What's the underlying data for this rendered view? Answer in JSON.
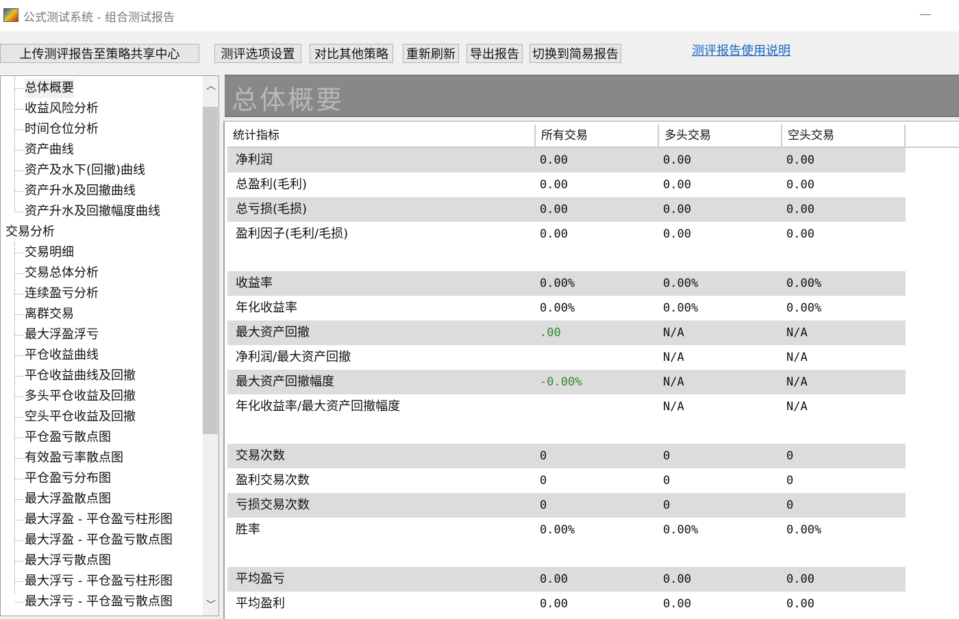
{
  "window": {
    "title": "公式测试系统 - 组合测试报告"
  },
  "toolbar": {
    "upload": "上传测评报告至策略共享中心",
    "options": "测评选项设置",
    "compare": "对比其他策略",
    "refresh": "重新刷新",
    "export": "导出报告",
    "switch": "切换到简易报告",
    "help": "测评报告使用说明"
  },
  "tree": {
    "items": [
      {
        "label": "总体概要",
        "level": 1,
        "selected": true
      },
      {
        "label": "收益风险分析",
        "level": 1
      },
      {
        "label": "时间仓位分析",
        "level": 1
      },
      {
        "label": "资产曲线",
        "level": 1
      },
      {
        "label": "资产及水下(回撤)曲线",
        "level": 1
      },
      {
        "label": "资产升水及回撤曲线",
        "level": 1
      },
      {
        "label": "资产升水及回撤幅度曲线",
        "level": 1
      },
      {
        "label": "交易分析",
        "level": 0
      },
      {
        "label": "交易明细",
        "level": 1
      },
      {
        "label": "交易总体分析",
        "level": 1
      },
      {
        "label": "连续盈亏分析",
        "level": 1
      },
      {
        "label": "离群交易",
        "level": 1
      },
      {
        "label": "最大浮盈浮亏",
        "level": 1
      },
      {
        "label": "平仓收益曲线",
        "level": 1
      },
      {
        "label": "平仓收益曲线及回撤",
        "level": 1
      },
      {
        "label": "多头平仓收益及回撤",
        "level": 1
      },
      {
        "label": "空头平仓收益及回撤",
        "level": 1
      },
      {
        "label": "平仓盈亏散点图",
        "level": 1
      },
      {
        "label": "有效盈亏率散点图",
        "level": 1
      },
      {
        "label": "平仓盈亏分布图",
        "level": 1
      },
      {
        "label": "最大浮盈散点图",
        "level": 1
      },
      {
        "label": "最大浮盈 - 平仓盈亏柱形图",
        "level": 1
      },
      {
        "label": "最大浮盈 - 平仓盈亏散点图",
        "level": 1
      },
      {
        "label": "最大浮亏散点图",
        "level": 1
      },
      {
        "label": "最大浮亏 - 平仓盈亏柱形图",
        "level": 1
      },
      {
        "label": "最大浮亏 - 平仓盈亏散点图",
        "level": 1
      }
    ]
  },
  "section": {
    "title": "总体概要"
  },
  "table": {
    "headers": [
      "统计指标",
      "所有交易",
      "多头交易",
      "空头交易"
    ],
    "groups": [
      [
        {
          "label": "净利润",
          "all": "0.00",
          "long": "0.00",
          "short": "0.00"
        },
        {
          "label": "总盈利(毛利)",
          "all": "0.00",
          "long": "0.00",
          "short": "0.00"
        },
        {
          "label": "总亏损(毛损)",
          "all": "0.00",
          "long": "0.00",
          "short": "0.00"
        },
        {
          "label": "盈利因子(毛利/毛损)",
          "all": "0.00",
          "long": "0.00",
          "short": "0.00"
        }
      ],
      [
        {
          "label": "收益率",
          "all": "0.00%",
          "long": "0.00%",
          "short": "0.00%"
        },
        {
          "label": "年化收益率",
          "all": "0.00%",
          "long": "0.00%",
          "short": "0.00%"
        },
        {
          "label": "最大资产回撤",
          "all": ".00",
          "all_color": "#2e8b2e",
          "long": "N/A",
          "short": "N/A"
        },
        {
          "label": "净利润/最大资产回撤",
          "all": "",
          "long": "N/A",
          "short": "N/A"
        },
        {
          "label": "最大资产回撤幅度",
          "all": "-0.00%",
          "all_color": "#2e8b2e",
          "long": "N/A",
          "short": "N/A"
        },
        {
          "label": "年化收益率/最大资产回撤幅度",
          "all": "",
          "long": "N/A",
          "short": "N/A"
        }
      ],
      [
        {
          "label": "交易次数",
          "all": "0",
          "long": "0",
          "short": "0"
        },
        {
          "label": "盈利交易次数",
          "all": "0",
          "long": "0",
          "short": "0"
        },
        {
          "label": "亏损交易次数",
          "all": "0",
          "long": "0",
          "short": "0"
        },
        {
          "label": "胜率",
          "all": "0.00%",
          "long": "0.00%",
          "short": "0.00%"
        }
      ],
      [
        {
          "label": "平均盈亏",
          "all": "0.00",
          "long": "0.00",
          "short": "0.00"
        },
        {
          "label": "平均盈利",
          "all": "0.00",
          "long": "0.00",
          "short": "0.00"
        }
      ]
    ]
  }
}
